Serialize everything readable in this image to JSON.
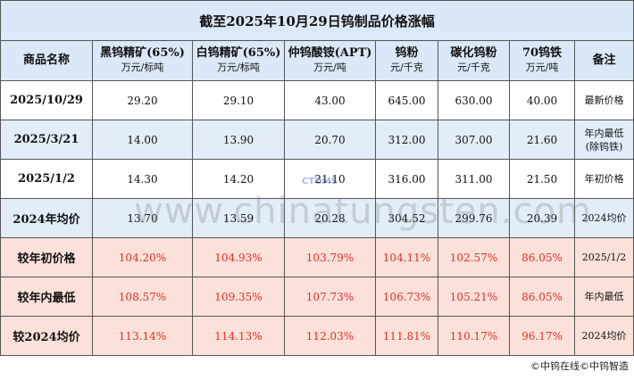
{
  "title": "截至2025年10月29日钨制品价格涨幅",
  "header": [
    {
      "name": "商品名称"
    },
    {
      "name": "黑钨精矿(65%)",
      "unit": "万元/标吨"
    },
    {
      "name": "白钨精矿(65%)",
      "unit": "万元/标吨"
    },
    {
      "name": "仲钨酸铵(APT)",
      "unit": "万元/吨"
    },
    {
      "name": "钨粉",
      "unit": "元/千克"
    },
    {
      "name": "碳化钨粉",
      "unit": "元/千克"
    },
    {
      "name": "70钨铁",
      "unit": "万元/吨"
    },
    {
      "name": "备注"
    }
  ],
  "rows": [
    {
      "label": "2025/10/29",
      "values": [
        "29.20",
        "29.10",
        "43.00",
        "645.00",
        "630.00",
        "40.00"
      ],
      "note": [
        "最新价格"
      ]
    },
    {
      "label": "2025/3/21",
      "values": [
        "14.00",
        "13.90",
        "20.70",
        "312.00",
        "307.00",
        "21.60"
      ],
      "note": [
        "年内最低",
        "(除钨铁)"
      ]
    },
    {
      "label": "2025/1/2",
      "values": [
        "14.30",
        "14.20",
        "21.10",
        "316.00",
        "311.00",
        "21.50"
      ],
      "note": [
        "年初价格"
      ]
    },
    {
      "label": "2024年均价",
      "values": [
        "13.70",
        "13.59",
        "20.28",
        "304.52",
        "299.76",
        "20.39"
      ],
      "note": [
        "2024均价"
      ]
    },
    {
      "label": "较年初价格",
      "values": [
        "104.20%",
        "104.93%",
        "103.79%",
        "104.11%",
        "102.57%",
        "86.05%"
      ],
      "note": [
        "2025/1/2"
      ]
    },
    {
      "label": "较年内最低",
      "values": [
        "108.57%",
        "109.35%",
        "107.73%",
        "106.73%",
        "105.21%",
        "86.05%"
      ],
      "note": [
        "年内最低"
      ]
    },
    {
      "label": "较2024均价",
      "values": [
        "113.14%",
        "114.13%",
        "112.03%",
        "111.81%",
        "110.17%",
        "96.17%"
      ],
      "note": [
        "2024均价"
      ]
    }
  ],
  "footer": "©中钨在线©中钨智造",
  "watermark": "www.chinatungsten.com",
  "logo": "CTOMS"
}
